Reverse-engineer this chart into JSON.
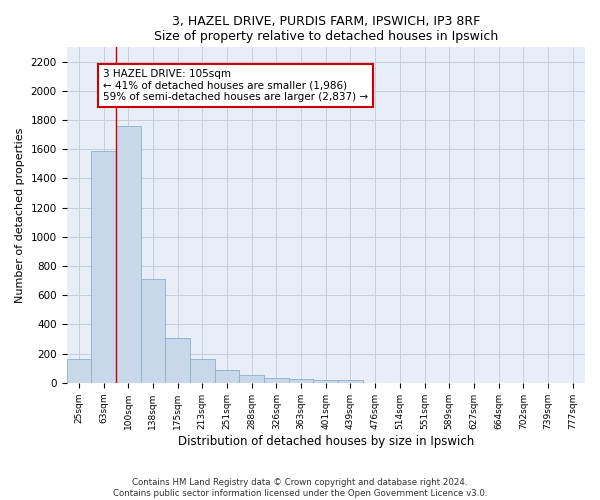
{
  "title1": "3, HAZEL DRIVE, PURDIS FARM, IPSWICH, IP3 8RF",
  "title2": "Size of property relative to detached houses in Ipswich",
  "xlabel": "Distribution of detached houses by size in Ipswich",
  "ylabel": "Number of detached properties",
  "categories": [
    "25sqm",
    "63sqm",
    "100sqm",
    "138sqm",
    "175sqm",
    "213sqm",
    "251sqm",
    "288sqm",
    "326sqm",
    "363sqm",
    "401sqm",
    "439sqm",
    "476sqm",
    "514sqm",
    "551sqm",
    "589sqm",
    "627sqm",
    "664sqm",
    "702sqm",
    "739sqm",
    "777sqm"
  ],
  "values": [
    160,
    1590,
    1760,
    710,
    310,
    160,
    90,
    55,
    35,
    25,
    20,
    20,
    0,
    0,
    0,
    0,
    0,
    0,
    0,
    0,
    0
  ],
  "bar_color": "#c8d8ea",
  "bar_edge_color": "#8ab0cc",
  "grid_color": "#c5cfe0",
  "background_color": "#e8eef8",
  "annotation_text": "3 HAZEL DRIVE: 105sqm\n← 41% of detached houses are smaller (1,986)\n59% of semi-detached houses are larger (2,837) →",
  "annotation_box_color": "#ffffff",
  "annotation_edge_color": "#cc0000",
  "vline_x": 1.5,
  "vline_color": "#cc0000",
  "ylim": [
    0,
    2300
  ],
  "yticks": [
    0,
    200,
    400,
    600,
    800,
    1000,
    1200,
    1400,
    1600,
    1800,
    2000,
    2200
  ],
  "footnote1": "Contains HM Land Registry data © Crown copyright and database right 2024.",
  "footnote2": "Contains public sector information licensed under the Open Government Licence v3.0."
}
